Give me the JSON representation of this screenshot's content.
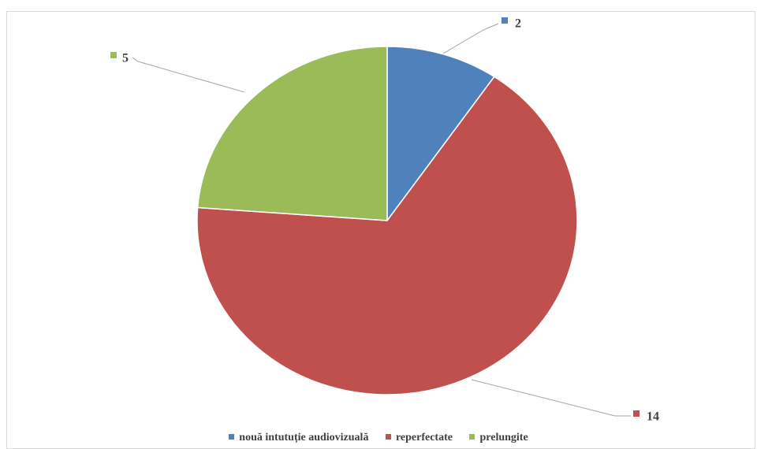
{
  "chart_data": {
    "type": "pie",
    "categories": [
      "nouă intutuție audiovizuală",
      "reperfectate",
      "prelungite"
    ],
    "values": [
      2,
      14,
      5
    ],
    "colors": [
      "#4f81bd",
      "#c0504d",
      "#9bbb59"
    ],
    "data_labels": [
      "2",
      "14",
      "5"
    ],
    "start_angle_deg": 0,
    "direction": "clockwise",
    "legend_position": "bottom"
  }
}
